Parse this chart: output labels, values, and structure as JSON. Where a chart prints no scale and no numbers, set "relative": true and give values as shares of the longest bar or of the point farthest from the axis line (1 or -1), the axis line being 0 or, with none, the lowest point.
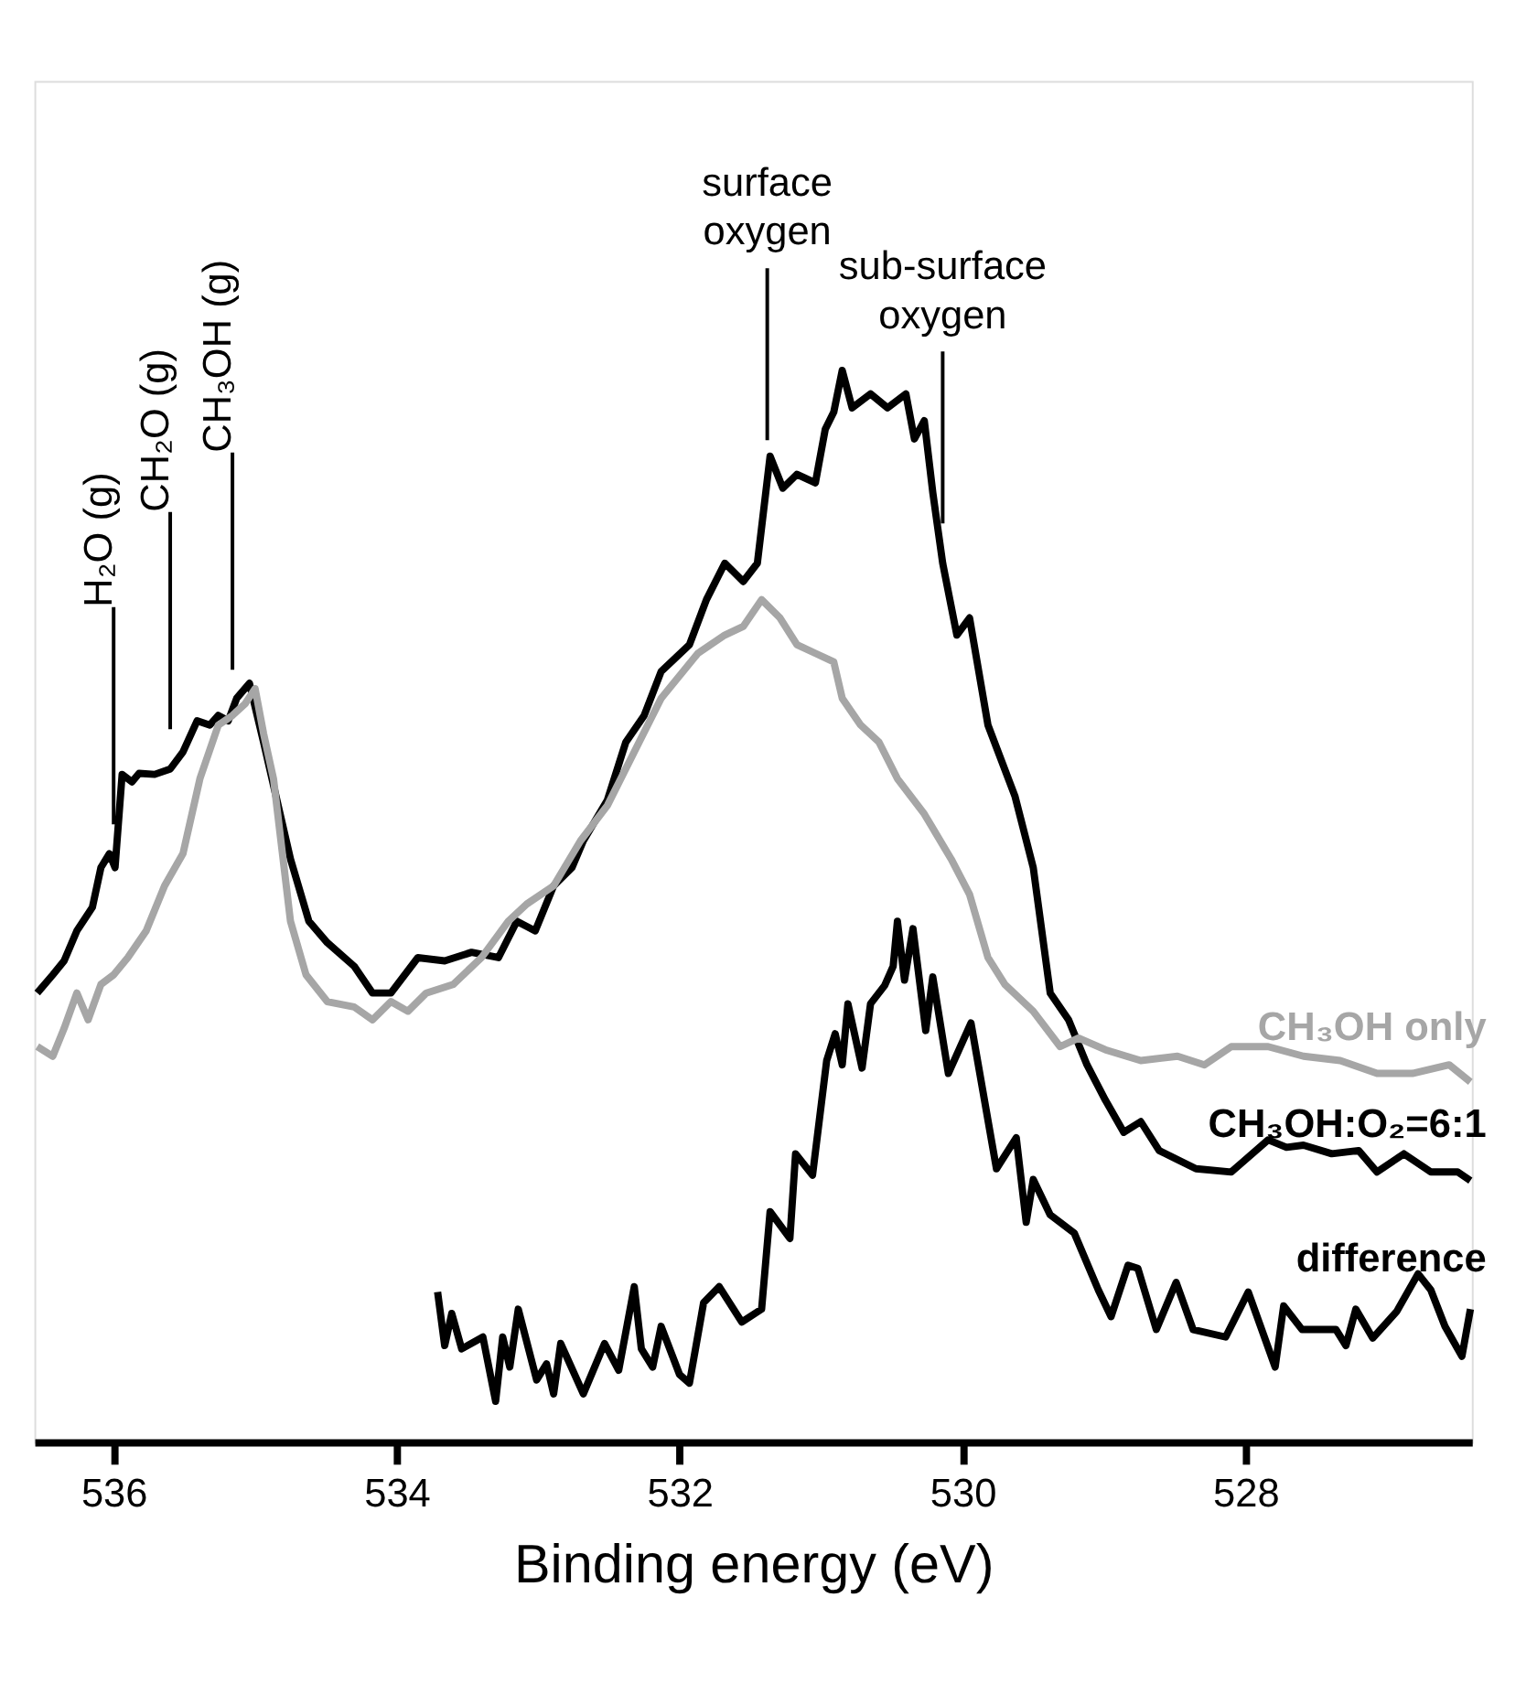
{
  "chart_data": {
    "type": "line",
    "relative": true,
    "xlabel": "Binding energy (eV)",
    "xlim": [
      536.56,
      526.4
    ],
    "xticks": [
      536,
      534,
      532,
      530,
      528
    ],
    "grid": false,
    "marker": "none",
    "line_style": "solid",
    "series": [
      {
        "name": "CH₃OH:O₂=6:1",
        "color": "#000000",
        "x": [
          536.54,
          536.43,
          536.35,
          536.26,
          536.15,
          536.09,
          536.03,
          535.99,
          535.94,
          535.87,
          535.82,
          535.71,
          535.6,
          535.51,
          535.41,
          535.32,
          535.26,
          535.19,
          535.13,
          535.04,
          534.94,
          534.75,
          534.62,
          534.49,
          534.3,
          534.17,
          534.04,
          533.85,
          533.66,
          533.47,
          533.28,
          533.15,
          533.02,
          532.89,
          532.76,
          532.68,
          532.51,
          532.38,
          532.25,
          532.13,
          531.93,
          531.81,
          531.68,
          531.55,
          531.45,
          531.36,
          531.27,
          531.17,
          531.04,
          530.97,
          530.91,
          530.85,
          530.78,
          530.65,
          530.53,
          530.4,
          530.34,
          530.27,
          530.21,
          530.14,
          530.04,
          529.95,
          529.82,
          529.63,
          529.5,
          529.38,
          529.25,
          529.12,
          528.99,
          528.86,
          528.74,
          528.61,
          528.35,
          528.1,
          527.84,
          527.71,
          527.59,
          527.39,
          527.2,
          527.07,
          526.88,
          526.69,
          526.5,
          526.41
        ],
        "values": [
          0.419,
          0.436,
          0.449,
          0.477,
          0.499,
          0.536,
          0.549,
          0.536,
          0.623,
          0.616,
          0.624,
          0.623,
          0.628,
          0.644,
          0.673,
          0.669,
          0.678,
          0.673,
          0.694,
          0.708,
          0.653,
          0.544,
          0.486,
          0.466,
          0.444,
          0.419,
          0.419,
          0.452,
          0.449,
          0.457,
          0.452,
          0.486,
          0.477,
          0.519,
          0.536,
          0.561,
          0.599,
          0.653,
          0.678,
          0.719,
          0.744,
          0.786,
          0.82,
          0.803,
          0.82,
          0.92,
          0.89,
          0.903,
          0.895,
          0.945,
          0.961,
          1.0,
          0.965,
          0.978,
          0.965,
          0.978,
          0.936,
          0.953,
          0.886,
          0.82,
          0.753,
          0.769,
          0.669,
          0.603,
          0.536,
          0.419,
          0.394,
          0.352,
          0.319,
          0.289,
          0.299,
          0.272,
          0.255,
          0.252,
          0.282,
          0.275,
          0.277,
          0.269,
          0.272,
          0.252,
          0.269,
          0.252,
          0.252,
          0.244
        ]
      },
      {
        "name": "CH₃OH only",
        "color": "#a6a6a6",
        "x": [
          536.54,
          536.43,
          536.35,
          536.26,
          536.18,
          536.09,
          536.0,
          535.9,
          535.77,
          535.64,
          535.51,
          535.39,
          535.26,
          535.16,
          535.07,
          535.0,
          534.94,
          534.87,
          534.75,
          534.64,
          534.49,
          534.3,
          534.17,
          534.04,
          533.92,
          533.79,
          533.6,
          533.4,
          533.21,
          533.08,
          532.89,
          532.7,
          532.51,
          532.32,
          532.13,
          531.87,
          531.68,
          531.55,
          531.42,
          531.29,
          531.17,
          531.04,
          530.91,
          530.85,
          530.72,
          530.59,
          530.46,
          530.27,
          530.08,
          529.95,
          529.82,
          529.7,
          529.5,
          529.31,
          529.18,
          528.99,
          528.74,
          528.48,
          528.29,
          528.1,
          527.84,
          527.59,
          527.33,
          527.07,
          526.82,
          526.56,
          526.41
        ],
        "values": [
          0.369,
          0.36,
          0.386,
          0.419,
          0.394,
          0.427,
          0.436,
          0.452,
          0.477,
          0.519,
          0.549,
          0.619,
          0.669,
          0.678,
          0.689,
          0.703,
          0.661,
          0.619,
          0.486,
          0.436,
          0.411,
          0.406,
          0.394,
          0.411,
          0.402,
          0.419,
          0.427,
          0.452,
          0.486,
          0.502,
          0.519,
          0.561,
          0.594,
          0.644,
          0.694,
          0.736,
          0.753,
          0.761,
          0.786,
          0.769,
          0.744,
          0.736,
          0.728,
          0.694,
          0.669,
          0.653,
          0.619,
          0.586,
          0.544,
          0.511,
          0.452,
          0.427,
          0.402,
          0.369,
          0.377,
          0.366,
          0.356,
          0.36,
          0.352,
          0.369,
          0.369,
          0.36,
          0.356,
          0.344,
          0.344,
          0.352,
          0.336
        ]
      },
      {
        "name": "difference",
        "color": "#000000",
        "x": [
          533.71,
          533.66,
          533.61,
          533.54,
          533.39,
          533.3,
          533.25,
          533.2,
          533.14,
          533.01,
          532.94,
          532.89,
          532.84,
          532.68,
          532.53,
          532.43,
          532.32,
          532.27,
          532.19,
          532.13,
          532.0,
          531.93,
          531.83,
          531.72,
          531.56,
          531.42,
          531.36,
          531.22,
          531.18,
          531.06,
          530.96,
          530.9,
          530.85,
          530.81,
          530.71,
          530.65,
          530.55,
          530.49,
          530.46,
          530.41,
          530.35,
          530.26,
          530.21,
          530.1,
          529.94,
          529.76,
          529.62,
          529.55,
          529.5,
          529.38,
          529.21,
          529.04,
          528.95,
          528.83,
          528.76,
          528.63,
          528.49,
          528.37,
          528.14,
          527.98,
          527.79,
          527.73,
          527.6,
          527.36,
          527.29,
          527.22,
          527.1,
          526.93,
          526.78,
          526.69,
          526.59,
          526.47,
          526.41
        ],
        "values": [
          0.14,
          0.09,
          0.12,
          0.087,
          0.098,
          0.038,
          0.098,
          0.07,
          0.124,
          0.058,
          0.073,
          0.045,
          0.092,
          0.045,
          0.092,
          0.067,
          0.145,
          0.087,
          0.07,
          0.108,
          0.063,
          0.055,
          0.13,
          0.145,
          0.112,
          0.124,
          0.215,
          0.19,
          0.269,
          0.249,
          0.356,
          0.381,
          0.352,
          0.409,
          0.349,
          0.409,
          0.426,
          0.444,
          0.486,
          0.431,
          0.479,
          0.384,
          0.434,
          0.344,
          0.391,
          0.255,
          0.284,
          0.205,
          0.245,
          0.212,
          0.195,
          0.142,
          0.117,
          0.165,
          0.162,
          0.105,
          0.149,
          0.105,
          0.098,
          0.14,
          0.07,
          0.127,
          0.105,
          0.105,
          0.09,
          0.124,
          0.097,
          0.122,
          0.157,
          0.142,
          0.108,
          0.08,
          0.124
        ]
      }
    ],
    "ref_lines": [
      {
        "axis": "x",
        "value": 536.0,
        "label": "H₂O (g)"
      },
      {
        "axis": "x",
        "value": 535.6,
        "label": "CH₂O (g)"
      },
      {
        "axis": "x",
        "value": 535.16,
        "label": "CH₃OH (g)"
      },
      {
        "axis": "x",
        "value": 531.38,
        "label": "surface\noxygen"
      },
      {
        "axis": "x",
        "value": 530.14,
        "label": "sub-surface\noxygen"
      }
    ]
  }
}
